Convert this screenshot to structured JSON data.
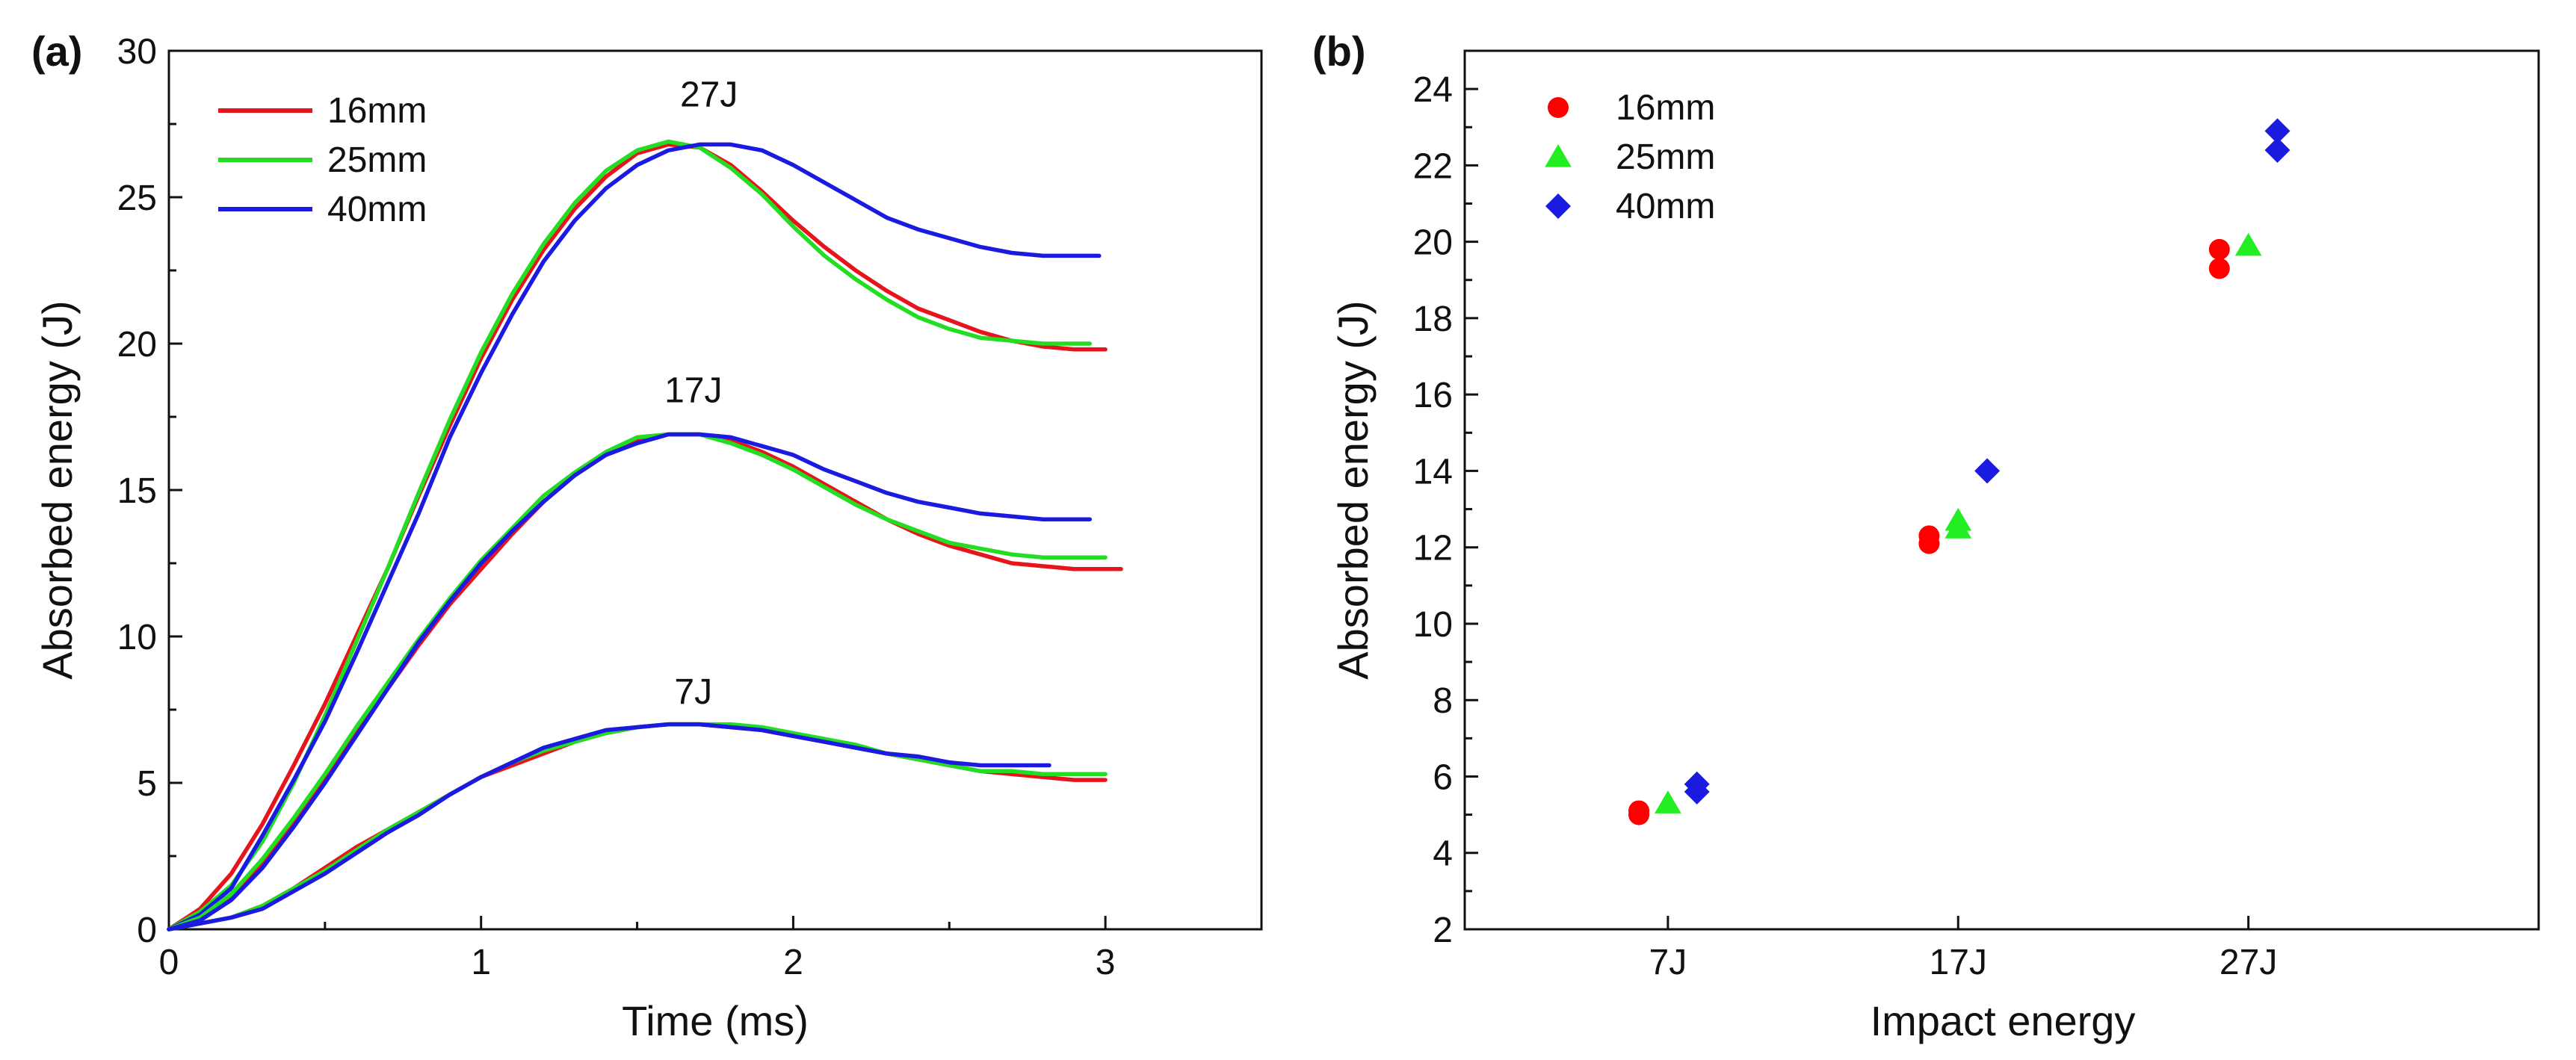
{
  "chart_data": [
    {
      "panel_label": "(a)",
      "type": "line",
      "xlabel": "Time (ms)",
      "ylabel": "Absorbed energy (J)",
      "xlim": [
        0,
        3.5
      ],
      "ylim": [
        0,
        30
      ],
      "xticks": [
        0,
        1,
        2,
        3
      ],
      "yticks": [
        0,
        5,
        10,
        15,
        20,
        25,
        30
      ],
      "legend": {
        "placement": "top-left",
        "entries": [
          "16mm",
          "25mm",
          "40mm"
        ]
      },
      "colors": {
        "16mm": "#e8141c",
        "25mm": "#22dd22",
        "40mm": "#1a1ae0"
      },
      "groups": [
        {
          "label": "27J",
          "label_at": [
            1.73,
            28.1
          ],
          "series": [
            {
              "name": "16mm",
              "x": [
                0,
                0.1,
                0.2,
                0.3,
                0.4,
                0.5,
                0.6,
                0.7,
                0.8,
                0.9,
                1.0,
                1.1,
                1.2,
                1.3,
                1.4,
                1.5,
                1.6,
                1.7,
                1.8,
                1.9,
                2.0,
                2.1,
                2.2,
                2.3,
                2.4,
                2.5,
                2.6,
                2.7,
                2.8,
                2.9,
                3.0
              ],
              "y": [
                0,
                0.7,
                1.9,
                3.6,
                5.6,
                7.7,
                10.0,
                12.3,
                14.8,
                17.2,
                19.5,
                21.5,
                23.2,
                24.6,
                25.7,
                26.5,
                26.8,
                26.7,
                26.1,
                25.2,
                24.2,
                23.3,
                22.5,
                21.8,
                21.2,
                20.8,
                20.4,
                20.1,
                19.9,
                19.8,
                19.8
              ]
            },
            {
              "name": "25mm",
              "x": [
                0,
                0.1,
                0.2,
                0.3,
                0.4,
                0.5,
                0.6,
                0.7,
                0.8,
                0.9,
                1.0,
                1.1,
                1.2,
                1.3,
                1.4,
                1.5,
                1.6,
                1.7,
                1.8,
                1.9,
                2.0,
                2.1,
                2.2,
                2.3,
                2.4,
                2.5,
                2.6,
                2.7,
                2.8,
                2.9,
                2.95
              ],
              "y": [
                0,
                0.6,
                1.5,
                3.0,
                5.0,
                7.3,
                9.8,
                12.3,
                14.9,
                17.4,
                19.7,
                21.7,
                23.4,
                24.8,
                25.9,
                26.6,
                26.9,
                26.7,
                26.0,
                25.1,
                24.0,
                23.0,
                22.2,
                21.5,
                20.9,
                20.5,
                20.2,
                20.1,
                20.0,
                20.0,
                20.0
              ]
            },
            {
              "name": "40mm",
              "x": [
                0,
                0.1,
                0.2,
                0.3,
                0.4,
                0.5,
                0.6,
                0.7,
                0.8,
                0.9,
                1.0,
                1.1,
                1.2,
                1.3,
                1.4,
                1.5,
                1.6,
                1.7,
                1.8,
                1.9,
                2.0,
                2.1,
                2.2,
                2.3,
                2.4,
                2.5,
                2.6,
                2.7,
                2.8,
                2.9,
                2.98
              ],
              "y": [
                0,
                0.5,
                1.4,
                3.2,
                5.1,
                7.1,
                9.4,
                11.8,
                14.2,
                16.8,
                19.0,
                21.0,
                22.8,
                24.2,
                25.3,
                26.1,
                26.6,
                26.8,
                26.8,
                26.6,
                26.1,
                25.5,
                24.9,
                24.3,
                23.9,
                23.6,
                23.3,
                23.1,
                23.0,
                23.0,
                23.0
              ]
            }
          ]
        },
        {
          "label": "17J",
          "label_at": [
            1.68,
            18.0
          ],
          "series": [
            {
              "name": "16mm",
              "x": [
                0,
                0.1,
                0.2,
                0.3,
                0.4,
                0.5,
                0.6,
                0.7,
                0.8,
                0.9,
                1.0,
                1.1,
                1.2,
                1.3,
                1.4,
                1.5,
                1.6,
                1.7,
                1.8,
                1.9,
                2.0,
                2.1,
                2.2,
                2.3,
                2.4,
                2.5,
                2.6,
                2.7,
                2.8,
                2.9,
                3.0,
                3.05
              ],
              "y": [
                0,
                0.4,
                1.1,
                2.2,
                3.6,
                5.1,
                6.7,
                8.2,
                9.7,
                11.1,
                12.3,
                13.5,
                14.6,
                15.5,
                16.2,
                16.7,
                16.9,
                16.9,
                16.7,
                16.3,
                15.8,
                15.2,
                14.6,
                14.0,
                13.5,
                13.1,
                12.8,
                12.5,
                12.4,
                12.3,
                12.3,
                12.3
              ]
            },
            {
              "name": "25mm",
              "x": [
                0,
                0.1,
                0.2,
                0.3,
                0.4,
                0.5,
                0.6,
                0.7,
                0.8,
                0.9,
                1.0,
                1.1,
                1.2,
                1.3,
                1.4,
                1.5,
                1.6,
                1.7,
                1.8,
                1.9,
                2.0,
                2.1,
                2.2,
                2.3,
                2.4,
                2.5,
                2.6,
                2.7,
                2.8,
                2.9,
                3.0
              ],
              "y": [
                0,
                0.4,
                1.2,
                2.4,
                3.8,
                5.3,
                6.9,
                8.4,
                9.9,
                11.3,
                12.6,
                13.7,
                14.8,
                15.6,
                16.3,
                16.8,
                16.9,
                16.9,
                16.6,
                16.2,
                15.7,
                15.1,
                14.5,
                14.0,
                13.6,
                13.2,
                13.0,
                12.8,
                12.7,
                12.7,
                12.7
              ]
            },
            {
              "name": "40mm",
              "x": [
                0,
                0.1,
                0.2,
                0.3,
                0.4,
                0.5,
                0.6,
                0.7,
                0.8,
                0.9,
                1.0,
                1.1,
                1.2,
                1.3,
                1.4,
                1.5,
                1.6,
                1.7,
                1.8,
                1.9,
                2.0,
                2.1,
                2.2,
                2.3,
                2.4,
                2.5,
                2.6,
                2.7,
                2.8,
                2.9,
                2.95
              ],
              "y": [
                0,
                0.3,
                1.0,
                2.1,
                3.5,
                5.0,
                6.6,
                8.2,
                9.8,
                11.2,
                12.5,
                13.6,
                14.6,
                15.5,
                16.2,
                16.6,
                16.9,
                16.9,
                16.8,
                16.5,
                16.2,
                15.7,
                15.3,
                14.9,
                14.6,
                14.4,
                14.2,
                14.1,
                14.0,
                14.0,
                14.0
              ]
            }
          ]
        },
        {
          "label": "7J",
          "label_at": [
            1.68,
            7.7
          ],
          "series": [
            {
              "name": "16mm",
              "x": [
                0,
                0.1,
                0.2,
                0.3,
                0.4,
                0.5,
                0.6,
                0.7,
                0.8,
                0.9,
                1.0,
                1.1,
                1.2,
                1.3,
                1.4,
                1.5,
                1.6,
                1.7,
                1.8,
                1.9,
                2.0,
                2.1,
                2.2,
                2.3,
                2.4,
                2.5,
                2.6,
                2.7,
                2.8,
                2.9,
                3.0
              ],
              "y": [
                0,
                0.2,
                0.4,
                0.8,
                1.4,
                2.1,
                2.8,
                3.4,
                4.0,
                4.6,
                5.2,
                5.6,
                6.0,
                6.4,
                6.7,
                6.9,
                7.0,
                7.0,
                6.9,
                6.8,
                6.6,
                6.4,
                6.2,
                6.0,
                5.8,
                5.6,
                5.4,
                5.3,
                5.2,
                5.1,
                5.1
              ]
            },
            {
              "name": "25mm",
              "x": [
                0,
                0.1,
                0.2,
                0.3,
                0.4,
                0.5,
                0.6,
                0.7,
                0.8,
                0.9,
                1.0,
                1.1,
                1.2,
                1.3,
                1.4,
                1.5,
                1.6,
                1.7,
                1.8,
                1.9,
                2.0,
                2.1,
                2.2,
                2.3,
                2.4,
                2.5,
                2.6,
                2.7,
                2.8,
                2.9,
                3.0
              ],
              "y": [
                0,
                0.2,
                0.4,
                0.8,
                1.4,
                2.0,
                2.7,
                3.4,
                4.0,
                4.6,
                5.2,
                5.7,
                6.1,
                6.4,
                6.7,
                6.9,
                7.0,
                7.0,
                7.0,
                6.9,
                6.7,
                6.5,
                6.3,
                6.0,
                5.8,
                5.6,
                5.4,
                5.4,
                5.3,
                5.3,
                5.3
              ]
            },
            {
              "name": "40mm",
              "x": [
                0,
                0.1,
                0.2,
                0.3,
                0.4,
                0.5,
                0.6,
                0.7,
                0.8,
                0.9,
                1.0,
                1.1,
                1.2,
                1.3,
                1.4,
                1.5,
                1.6,
                1.7,
                1.8,
                1.9,
                2.0,
                2.1,
                2.2,
                2.3,
                2.4,
                2.5,
                2.6,
                2.7,
                2.8,
                2.82
              ],
              "y": [
                0,
                0.2,
                0.4,
                0.7,
                1.3,
                1.9,
                2.6,
                3.3,
                3.9,
                4.6,
                5.2,
                5.7,
                6.2,
                6.5,
                6.8,
                6.9,
                7.0,
                7.0,
                6.9,
                6.8,
                6.6,
                6.4,
                6.2,
                6.0,
                5.9,
                5.7,
                5.6,
                5.6,
                5.6,
                5.6
              ]
            }
          ]
        }
      ]
    },
    {
      "panel_label": "(b)",
      "type": "scatter",
      "xlabel": "Impact energy",
      "ylabel": "Absorbed energy (J)",
      "categories": [
        "7J",
        "17J",
        "27J"
      ],
      "xlim": [
        0.3,
        4.0
      ],
      "ylim": [
        2,
        25
      ],
      "yticks": [
        2,
        4,
        6,
        8,
        10,
        12,
        14,
        16,
        18,
        20,
        22,
        24
      ],
      "legend": {
        "placement": "top-left",
        "entries": [
          "16mm",
          "25mm",
          "40mm"
        ]
      },
      "colors": {
        "16mm": "#ff0000",
        "25mm": "#22ee22",
        "40mm": "#1a1ae0"
      },
      "markers": {
        "16mm": "circle",
        "25mm": "triangle",
        "40mm": "diamond"
      },
      "series": [
        {
          "name": "16mm",
          "points": [
            [
              0.9,
              5.0
            ],
            [
              0.9,
              5.1
            ],
            [
              1.9,
              12.1
            ],
            [
              1.9,
              12.3
            ],
            [
              2.9,
              19.3
            ],
            [
              2.9,
              19.8
            ]
          ]
        },
        {
          "name": "25mm",
          "points": [
            [
              1.0,
              5.3
            ],
            [
              2.0,
              12.5
            ],
            [
              2.0,
              12.7
            ],
            [
              3.0,
              19.9
            ]
          ]
        },
        {
          "name": "40mm",
          "points": [
            [
              1.1,
              5.6
            ],
            [
              1.1,
              5.8
            ],
            [
              2.1,
              14.0
            ],
            [
              3.1,
              22.4
            ],
            [
              3.1,
              22.9
            ]
          ]
        }
      ]
    }
  ]
}
